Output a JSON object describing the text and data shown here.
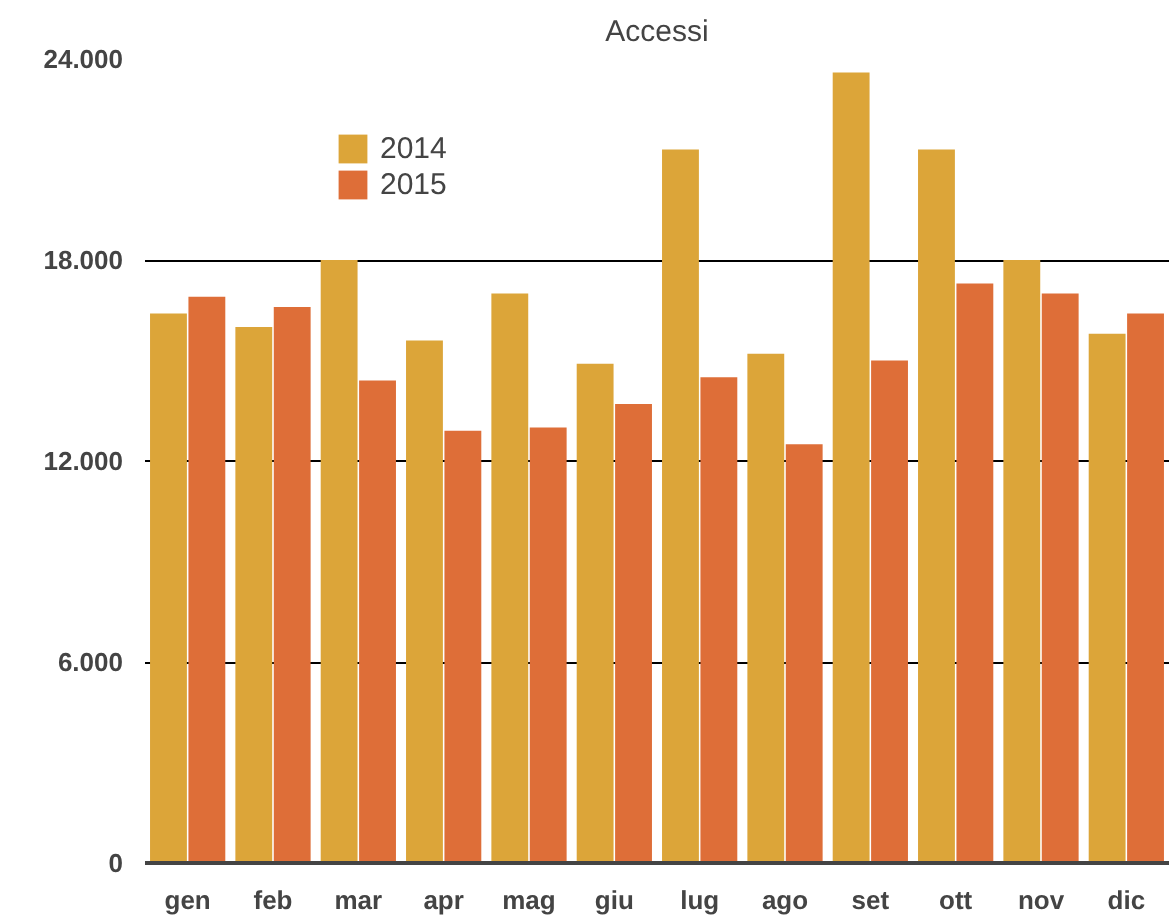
{
  "chart_data": {
    "type": "bar",
    "title": "Accessi",
    "categories": [
      "gen",
      "feb",
      "mar",
      "apr",
      "mag",
      "giu",
      "lug",
      "ago",
      "set",
      "ott",
      "nov",
      "dic"
    ],
    "series": [
      {
        "name": "2014",
        "color": "#dca539",
        "values": [
          16400,
          16000,
          18000,
          15600,
          17000,
          14900,
          21300,
          15200,
          23600,
          21300,
          18000,
          15800
        ]
      },
      {
        "name": "2015",
        "color": "#de6e38",
        "values": [
          16900,
          16600,
          14400,
          12900,
          13000,
          13700,
          14500,
          12500,
          15000,
          17300,
          17000,
          16400
        ]
      }
    ],
    "ylim": [
      0,
      24000
    ],
    "yticks": [
      {
        "value": 0,
        "label": "0"
      },
      {
        "value": 6000,
        "label": "6.000"
      },
      {
        "value": 12000,
        "label": "12.000"
      },
      {
        "value": 18000,
        "label": "18.000"
      },
      {
        "value": 24000,
        "label": "24.000"
      }
    ],
    "grid": "y",
    "legend": "top left"
  }
}
